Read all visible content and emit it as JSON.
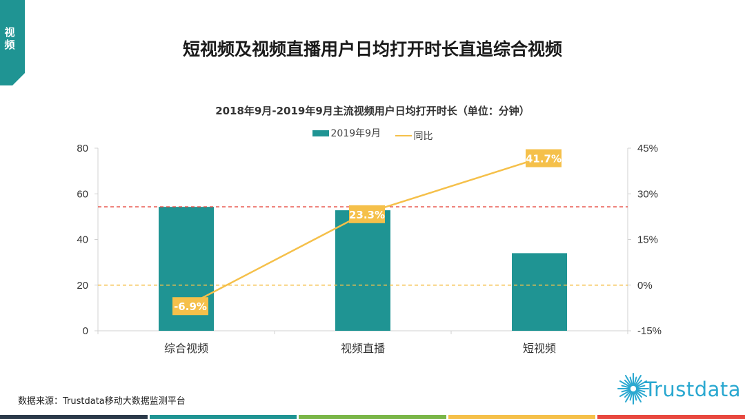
{
  "section_tab": {
    "label": "视频",
    "color": "#1f9493"
  },
  "page_title": "短视频及视频直播用户日均打开时长直追综合视频",
  "chart_data": {
    "type": "bar+line",
    "title": "2018年9月-2019年9月主流视频用户日均打开时长（单位：分钟）",
    "categories": [
      "综合视频",
      "视频直播",
      "短视频"
    ],
    "series": [
      {
        "name": "2019年9月",
        "type": "bar",
        "axis": "left",
        "values": [
          54.3,
          52.8,
          34.0
        ],
        "color": "#1f9493"
      },
      {
        "name": "同比",
        "type": "line",
        "axis": "right",
        "values": [
          -6.9,
          23.3,
          41.7
        ],
        "labels": [
          "-6.9%",
          "23.3%",
          "41.7%"
        ],
        "color": "#f5c04a"
      }
    ],
    "y_left": {
      "min": 0,
      "max": 80,
      "ticks": [
        0,
        20,
        40,
        60,
        80
      ]
    },
    "y_right": {
      "min": -15,
      "max": 45,
      "ticks": [
        -15,
        0,
        15,
        30,
        45
      ],
      "tick_labels": [
        "-15%",
        "0%",
        "15%",
        "30%",
        "45%"
      ]
    },
    "reference_lines": [
      {
        "axis": "left",
        "value": 54.3,
        "color": "#e8483f"
      },
      {
        "axis": "right",
        "value": 0,
        "color": "#f5c04a"
      }
    ],
    "legend": [
      "2019年9月",
      "同比"
    ],
    "legend_position": "top"
  },
  "source_text": "数据来源：Trustdata移动大数据监测平台",
  "logo_text": "Trustdata",
  "bottom_strip_colors": [
    "#2b3a4a",
    "#1f9493",
    "#7ab648",
    "#f5c04a",
    "#e8483f"
  ]
}
